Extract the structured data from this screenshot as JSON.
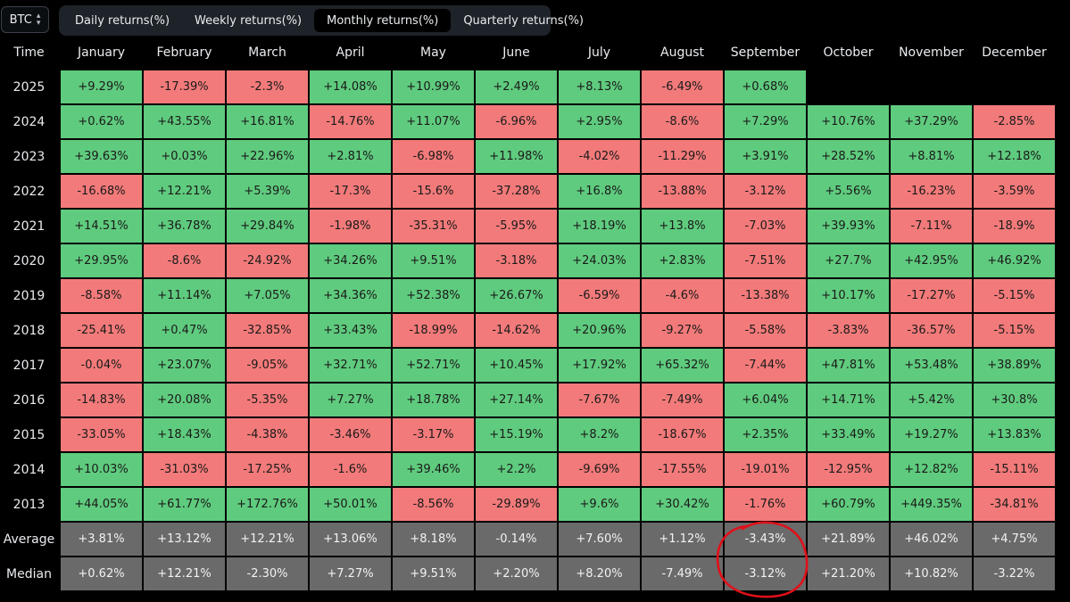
{
  "asset_select": {
    "value": "BTC"
  },
  "tabs": [
    {
      "label": "Daily returns(%)",
      "active": false
    },
    {
      "label": "Weekly returns(%)",
      "active": false
    },
    {
      "label": "Monthly returns(%)",
      "active": true
    },
    {
      "label": "Quarterly returns(%)",
      "active": false
    }
  ],
  "table": {
    "corner_label": "Time",
    "months": [
      "January",
      "February",
      "March",
      "April",
      "May",
      "June",
      "July",
      "August",
      "September",
      "October",
      "November",
      "December"
    ],
    "rows": [
      {
        "label": "2025",
        "cells": [
          "+9.29%",
          "-17.39%",
          "-2.3%",
          "+14.08%",
          "+10.99%",
          "+2.49%",
          "+8.13%",
          "-6.49%",
          "+0.68%",
          "",
          "",
          ""
        ]
      },
      {
        "label": "2024",
        "cells": [
          "+0.62%",
          "+43.55%",
          "+16.81%",
          "-14.76%",
          "+11.07%",
          "-6.96%",
          "+2.95%",
          "-8.6%",
          "+7.29%",
          "+10.76%",
          "+37.29%",
          "-2.85%"
        ]
      },
      {
        "label": "2023",
        "cells": [
          "+39.63%",
          "+0.03%",
          "+22.96%",
          "+2.81%",
          "-6.98%",
          "+11.98%",
          "-4.02%",
          "-11.29%",
          "+3.91%",
          "+28.52%",
          "+8.81%",
          "+12.18%"
        ]
      },
      {
        "label": "2022",
        "cells": [
          "-16.68%",
          "+12.21%",
          "+5.39%",
          "-17.3%",
          "-15.6%",
          "-37.28%",
          "+16.8%",
          "-13.88%",
          "-3.12%",
          "+5.56%",
          "-16.23%",
          "-3.59%"
        ]
      },
      {
        "label": "2021",
        "cells": [
          "+14.51%",
          "+36.78%",
          "+29.84%",
          "-1.98%",
          "-35.31%",
          "-5.95%",
          "+18.19%",
          "+13.8%",
          "-7.03%",
          "+39.93%",
          "-7.11%",
          "-18.9%"
        ]
      },
      {
        "label": "2020",
        "cells": [
          "+29.95%",
          "-8.6%",
          "-24.92%",
          "+34.26%",
          "+9.51%",
          "-3.18%",
          "+24.03%",
          "+2.83%",
          "-7.51%",
          "+27.7%",
          "+42.95%",
          "+46.92%"
        ]
      },
      {
        "label": "2019",
        "cells": [
          "-8.58%",
          "+11.14%",
          "+7.05%",
          "+34.36%",
          "+52.38%",
          "+26.67%",
          "-6.59%",
          "-4.6%",
          "-13.38%",
          "+10.17%",
          "-17.27%",
          "-5.15%"
        ]
      },
      {
        "label": "2018",
        "cells": [
          "-25.41%",
          "+0.47%",
          "-32.85%",
          "+33.43%",
          "-18.99%",
          "-14.62%",
          "+20.96%",
          "-9.27%",
          "-5.58%",
          "-3.83%",
          "-36.57%",
          "-5.15%"
        ]
      },
      {
        "label": "2017",
        "cells": [
          "-0.04%",
          "+23.07%",
          "-9.05%",
          "+32.71%",
          "+52.71%",
          "+10.45%",
          "+17.92%",
          "+65.32%",
          "-7.44%",
          "+47.81%",
          "+53.48%",
          "+38.89%"
        ]
      },
      {
        "label": "2016",
        "cells": [
          "-14.83%",
          "+20.08%",
          "-5.35%",
          "+7.27%",
          "+18.78%",
          "+27.14%",
          "-7.67%",
          "-7.49%",
          "+6.04%",
          "+14.71%",
          "+5.42%",
          "+30.8%"
        ]
      },
      {
        "label": "2015",
        "cells": [
          "-33.05%",
          "+18.43%",
          "-4.38%",
          "-3.46%",
          "-3.17%",
          "+15.19%",
          "+8.2%",
          "-18.67%",
          "+2.35%",
          "+33.49%",
          "+19.27%",
          "+13.83%"
        ]
      },
      {
        "label": "2014",
        "cells": [
          "+10.03%",
          "-31.03%",
          "-17.25%",
          "-1.6%",
          "+39.46%",
          "+2.2%",
          "-9.69%",
          "-17.55%",
          "-19.01%",
          "-12.95%",
          "+12.82%",
          "-15.11%"
        ]
      },
      {
        "label": "2013",
        "cells": [
          "+44.05%",
          "+61.77%",
          "+172.76%",
          "+50.01%",
          "-8.56%",
          "-29.89%",
          "+9.6%",
          "+30.42%",
          "-1.76%",
          "+60.79%",
          "+449.35%",
          "-34.81%"
        ]
      }
    ],
    "stats": [
      {
        "label": "Average",
        "cells": [
          "+3.81%",
          "+13.12%",
          "+12.21%",
          "+13.06%",
          "+8.18%",
          "-0.14%",
          "+7.60%",
          "+1.12%",
          "-3.43%",
          "+21.89%",
          "+46.02%",
          "+4.75%"
        ]
      },
      {
        "label": "Median",
        "cells": [
          "+0.62%",
          "+12.21%",
          "-2.30%",
          "+7.27%",
          "+9.51%",
          "+2.20%",
          "+8.20%",
          "-7.49%",
          "-3.12%",
          "+21.20%",
          "+10.82%",
          "-3.22%"
        ]
      }
    ]
  },
  "colors": {
    "positive": "#5fcb7e",
    "negative": "#f37a7a",
    "stat": "#6a6a6a",
    "annotation": "#e0101a"
  },
  "annotation": {
    "shape": "hand-drawn circle",
    "target": "September Average and Median"
  }
}
